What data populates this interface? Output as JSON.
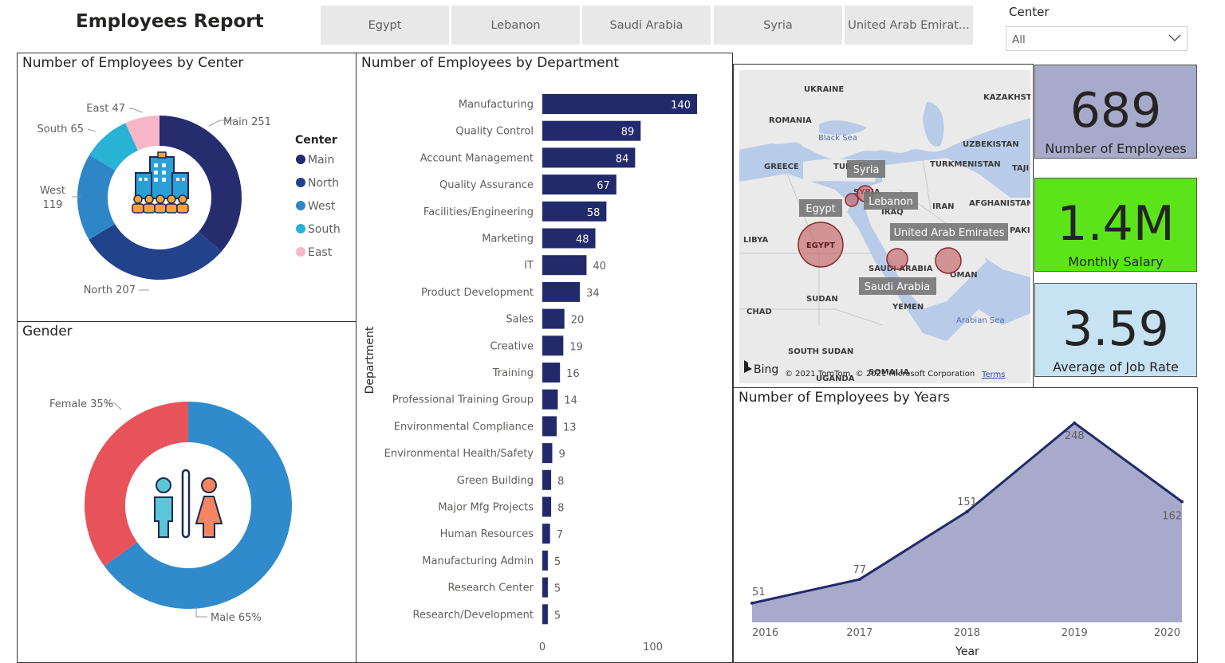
{
  "report_title": "Employees Report",
  "country_tabs": [
    "Egypt",
    "Lebanon",
    "Saudi Arabia",
    "Syria",
    "United Arab Emirat..."
  ],
  "center_filter": {
    "label": "Center",
    "value": "All"
  },
  "colors": {
    "main": "#262c6e",
    "north": "#22428c",
    "west": "#2e86c8",
    "south": "#27b2d6",
    "east": "#f7b7c9",
    "female": "#e8535b",
    "male": "#2f8bcb",
    "bar": "#222a6b",
    "kpi_employees": "#a7aacb",
    "kpi_salary": "#5be41a",
    "kpi_rate": "#c6e2f3"
  },
  "center_chart": {
    "title": "Number of Employees by Center",
    "legend_title": "Center",
    "chart_data": {
      "type": "pie",
      "slices": [
        {
          "name": "Main",
          "value": 251,
          "label": "Main 251"
        },
        {
          "name": "North",
          "value": 207,
          "label": "North 207"
        },
        {
          "name": "West",
          "value": 119,
          "label_lines": [
            "West",
            "119"
          ]
        },
        {
          "name": "South",
          "value": 65,
          "label": "South 65"
        },
        {
          "name": "East",
          "value": 47,
          "label": "East 47"
        }
      ],
      "legend": [
        "Main",
        "North",
        "West",
        "South",
        "East"
      ]
    }
  },
  "gender_chart": {
    "title": "Gender",
    "chart_data": {
      "type": "pie",
      "slices": [
        {
          "name": "Male",
          "value": 65,
          "label": "Male 65%"
        },
        {
          "name": "Female",
          "value": 35,
          "label": "Female 35%"
        }
      ]
    }
  },
  "department_chart": {
    "title": "Number of Employees by Department",
    "ylabel": "Department",
    "chart_data": {
      "type": "bar",
      "orientation": "horizontal",
      "categories": [
        "Manufacturing",
        "Quality Control",
        "Account Management",
        "Quality Assurance",
        "Facilities/Engineering",
        "Marketing",
        "IT",
        "Product Development",
        "Sales",
        "Creative",
        "Training",
        "Professional Training Group",
        "Environmental Compliance",
        "Environmental Health/Safety",
        "Green Building",
        "Major Mfg Projects",
        "Human Resources",
        "Manufacturing Admin",
        "Research Center",
        "Research/Development"
      ],
      "values": [
        140,
        89,
        84,
        67,
        58,
        48,
        40,
        34,
        20,
        19,
        16,
        14,
        13,
        9,
        8,
        8,
        7,
        5,
        5,
        5
      ],
      "x_ticks": [
        0,
        100
      ],
      "xlim": [
        0,
        140
      ]
    }
  },
  "map": {
    "country_labels": [
      "UKRAINE",
      "KAZAKHSTA",
      "ROMANIA",
      "Black Sea",
      "UZBEKISTAN",
      "GREECE",
      "TURKEY",
      "TURKMENISTAN",
      "TAJI",
      "SYRIA",
      "IRAQ",
      "IRAN",
      "AFGHANISTAN",
      "LIBYA",
      "EGYPT",
      "PAKISTA",
      "SAUDI ARABIA",
      "OMAN",
      "SUDAN",
      "YEMEN",
      "CHAD",
      "Arabian Sea",
      "SOUTH SUDAN",
      "SOMALIA",
      "UGANDA"
    ],
    "bubble_tooltips": [
      "Syria",
      "Egypt",
      "Lebanon",
      "United Arab Emirates",
      "Saudi Arabia"
    ],
    "attribution": "© 2021 TomTom, © 2021 Microsoft Corporation",
    "terms": "Terms",
    "brand": "Bing"
  },
  "kpis": [
    {
      "value": "689",
      "label": "Number of Employees"
    },
    {
      "value": "1.4M",
      "label": "Monthly Salary"
    },
    {
      "value": "3.59",
      "label": "Average of Job Rate"
    }
  ],
  "years_chart": {
    "title": "Number of Employees by Years",
    "xlabel": "Year",
    "chart_data": {
      "type": "area",
      "x": [
        "2016",
        "2017",
        "2018",
        "2019",
        "2020"
      ],
      "values": [
        51,
        77,
        151,
        248,
        162
      ],
      "ylim": [
        30,
        260
      ]
    }
  }
}
